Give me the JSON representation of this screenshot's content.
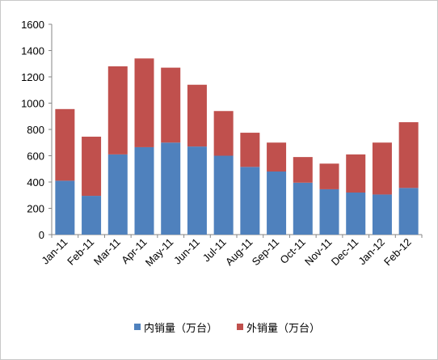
{
  "chart_data": {
    "type": "bar",
    "stacked": true,
    "categories": [
      "Jan-11",
      "Feb-11",
      "Mar-11",
      "Apr-11",
      "May-11",
      "Jun-11",
      "Jul-11",
      "Aug-11",
      "Sep-11",
      "Oct-11",
      "Nov-11",
      "Dec-11",
      "Jan-12",
      "Feb-12"
    ],
    "series": [
      {
        "name": "内销量（万台）",
        "color": "#4f81bd",
        "values": [
          410,
          295,
          610,
          665,
          700,
          670,
          600,
          515,
          480,
          395,
          345,
          320,
          305,
          355
        ]
      },
      {
        "name": "外销量（万台）",
        "color": "#c0504d",
        "values": [
          545,
          450,
          670,
          675,
          570,
          470,
          340,
          260,
          220,
          195,
          195,
          290,
          395,
          500
        ]
      }
    ],
    "ylim": [
      0,
      1600
    ],
    "yticks": [
      0,
      200,
      400,
      600,
      800,
      1000,
      1200,
      1400,
      1600
    ],
    "grid": false,
    "legend": "bottom"
  }
}
